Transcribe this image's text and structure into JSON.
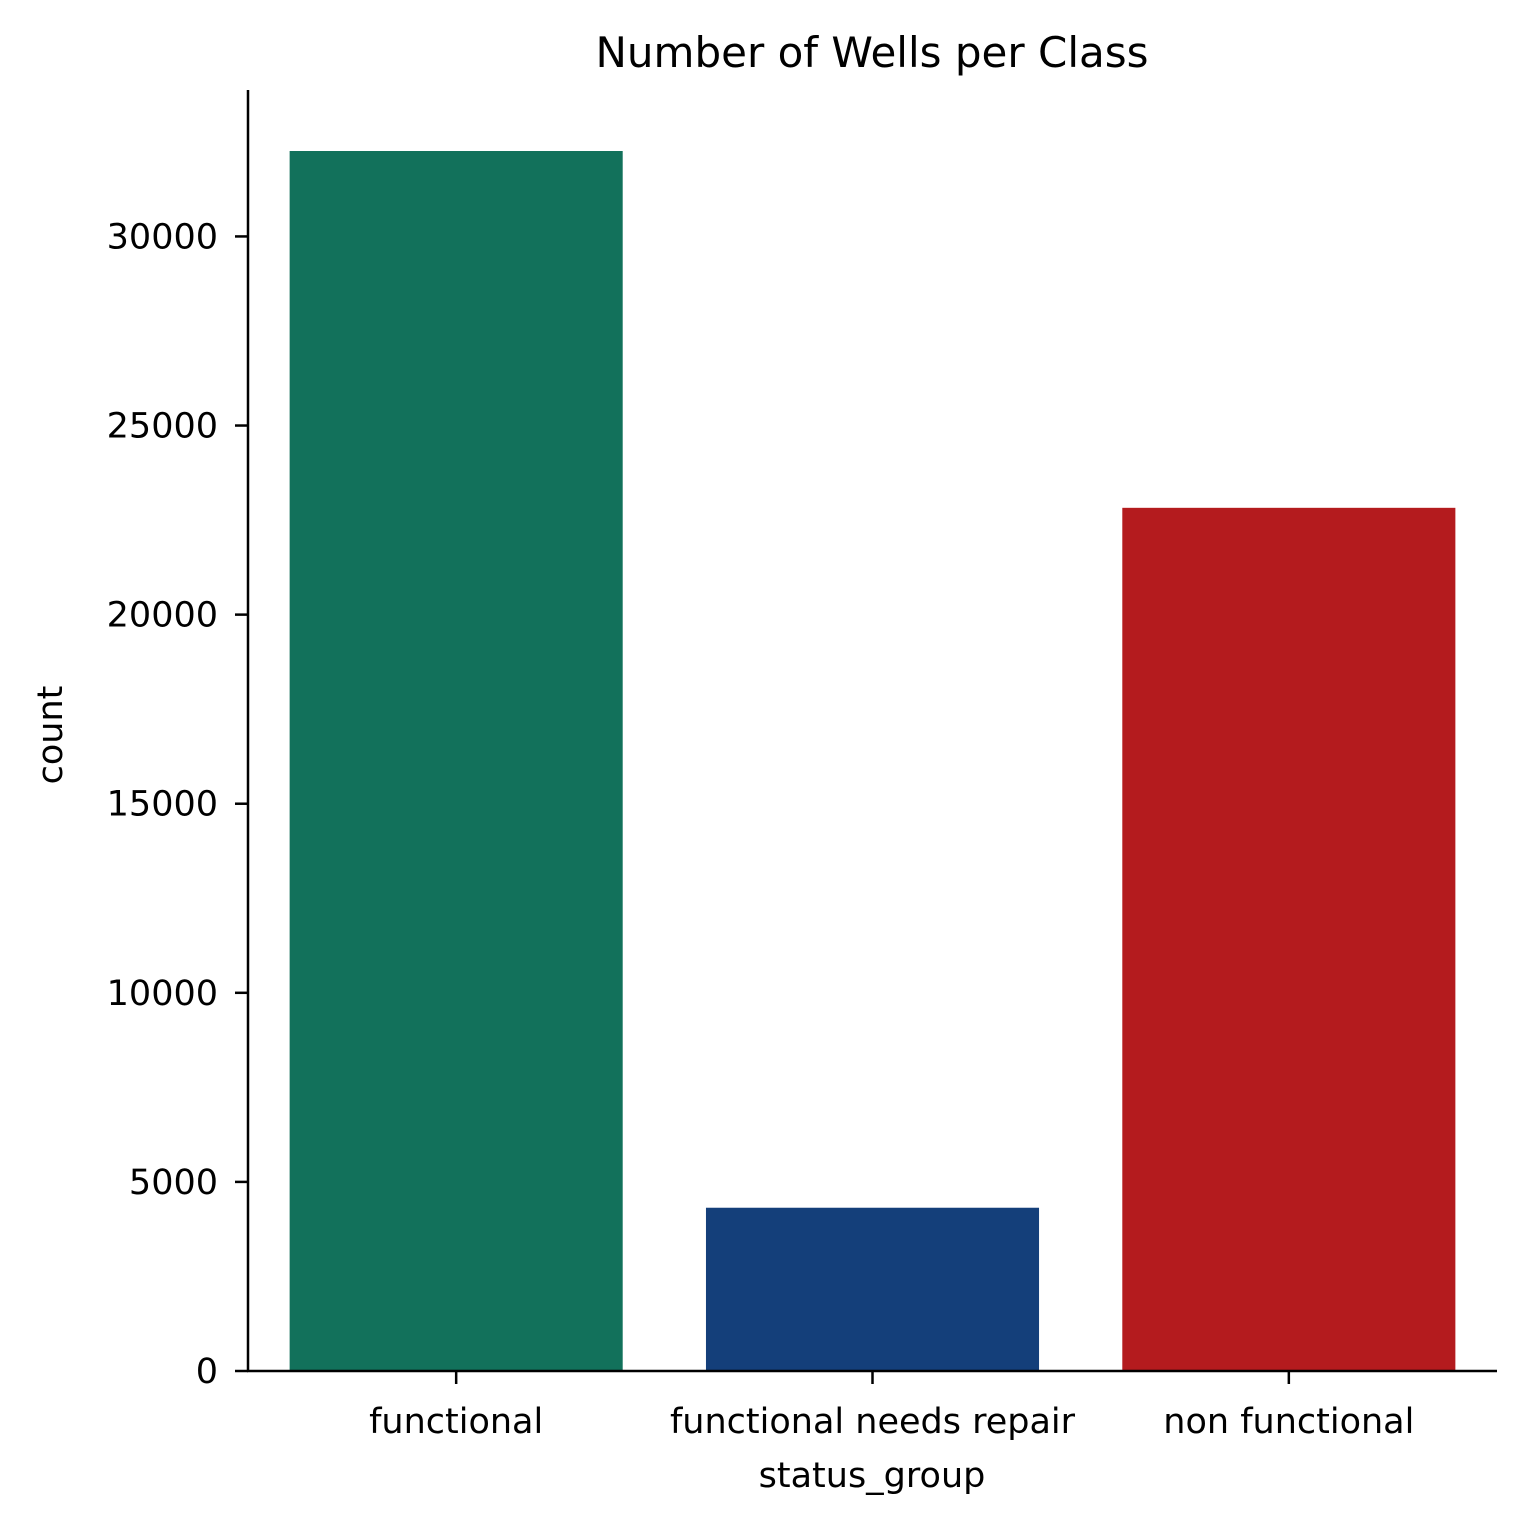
{
  "chart_data": {
    "type": "bar",
    "title": "Number of Wells per Class",
    "xlabel": "status_group",
    "ylabel": "count",
    "categories": [
      "functional",
      "functional needs repair",
      "non functional"
    ],
    "values": [
      32259,
      4317,
      22824
    ],
    "colors": [
      "#12715b",
      "#143f7a",
      "#b41b1e"
    ],
    "ylim": [
      0,
      33872
    ],
    "yticks": [
      0,
      5000,
      10000,
      15000,
      20000,
      25000,
      30000
    ],
    "ytick_labels": [
      "0",
      "5000",
      "10000",
      "15000",
      "20000",
      "25000",
      "30000"
    ],
    "grid": false,
    "legend": "none"
  }
}
